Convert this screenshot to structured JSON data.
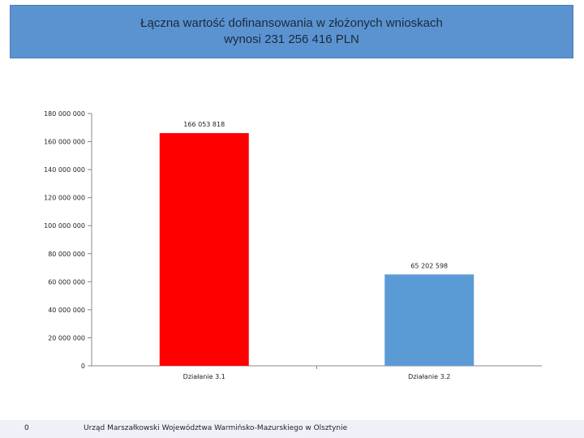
{
  "slide": {
    "title_line1": "Łączna wartość dofinansowania w złożonych wnioskach",
    "title_line2": "wynosi 231 256 416 PLN",
    "colors": {
      "title_bg": "#5b93d1"
    }
  },
  "chart_data": {
    "type": "bar",
    "categories": [
      "Działanie 3.1",
      "Działanie 3.2"
    ],
    "values": [
      166053818,
      65202598
    ],
    "value_labels": [
      "166 053 818",
      "65 202 598"
    ],
    "bar_colors": [
      "#ff0000",
      "#5b9bd5"
    ],
    "ylim": [
      0,
      180000000
    ],
    "yticks": [
      0,
      20000000,
      40000000,
      60000000,
      80000000,
      100000000,
      120000000,
      140000000,
      160000000,
      180000000
    ],
    "ytick_labels": [
      "0",
      "20 000 000",
      "40 000 000",
      "60 000 000",
      "80 000 000",
      "100 000 000",
      "120 000 000",
      "140 000 000",
      "160 000 000",
      "180 000 000"
    ],
    "grid": false,
    "legend": "none"
  },
  "footer": {
    "page_number": "0",
    "organization": "Urząd Marszałkowski Województwa Warmińsko-Mazurskiego w Olsztynie"
  }
}
